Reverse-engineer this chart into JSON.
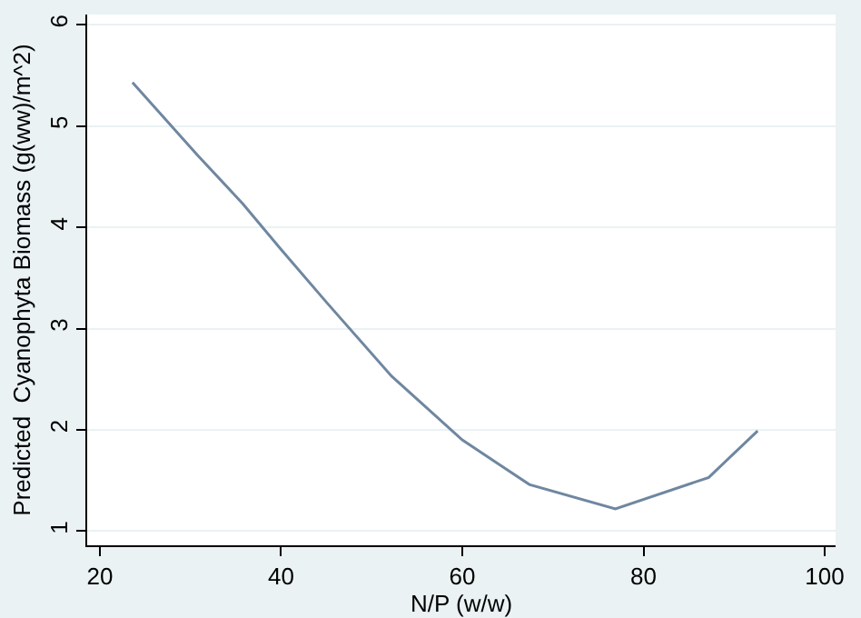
{
  "chart_data": {
    "type": "line",
    "xlabel": "N/P (w/w)",
    "ylabel": "Predicted  Cyanophyta Biomass (g(ww)/m^2)",
    "x": [
      23.6,
      30.8,
      35.8,
      40.0,
      45.1,
      52.2,
      60.0,
      67.4,
      76.9,
      87.2,
      92.6
    ],
    "series": [
      {
        "color": "#6f87a0",
        "values": [
          5.43,
          4.71,
          4.23,
          3.78,
          3.25,
          2.53,
          1.9,
          1.46,
          1.22,
          1.53,
          1.99
        ]
      }
    ],
    "xlim": [
      18.6,
      101.2
    ],
    "ylim": [
      0.86,
      6.1
    ],
    "xticks": [
      20,
      40,
      60,
      80,
      100
    ],
    "yticks": [
      1,
      2,
      3,
      4,
      5,
      6
    ],
    "grid": "y",
    "marker": "none",
    "line_style": "solid"
  }
}
